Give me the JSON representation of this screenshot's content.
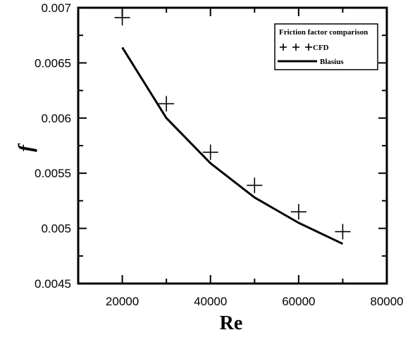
{
  "chart_data": {
    "type": "line",
    "title": "",
    "xlabel": "Re",
    "ylabel": "f",
    "xlim": [
      10000,
      80000
    ],
    "ylim": [
      0.0045,
      0.007
    ],
    "x_ticks": [
      20000,
      40000,
      60000,
      80000
    ],
    "x_tick_labels": [
      "20000",
      "40000",
      "60000",
      "80000"
    ],
    "y_ticks": [
      0.0045,
      0.005,
      0.0055,
      0.006,
      0.0065,
      0.007
    ],
    "y_tick_labels": [
      "0.0045",
      "0.005",
      "0.0055",
      "0.006",
      "0.0065",
      "0.007"
    ],
    "grid": false,
    "legend": {
      "title": "Friction factor comparison",
      "placement": "top-right"
    },
    "series": [
      {
        "name": "CFD",
        "style": "markers",
        "marker": "plus",
        "color": "#000000",
        "x": [
          20000,
          30000,
          40000,
          50000,
          60000,
          70000
        ],
        "y": [
          0.00691,
          0.00613,
          0.00569,
          0.00539,
          0.00515,
          0.00497
        ]
      },
      {
        "name": "Blasius",
        "style": "line",
        "color": "#000000",
        "x": [
          20000,
          30000,
          40000,
          50000,
          60000,
          70000
        ],
        "y": [
          0.00664,
          0.006,
          0.00559,
          0.00528,
          0.00505,
          0.00486
        ]
      }
    ]
  }
}
